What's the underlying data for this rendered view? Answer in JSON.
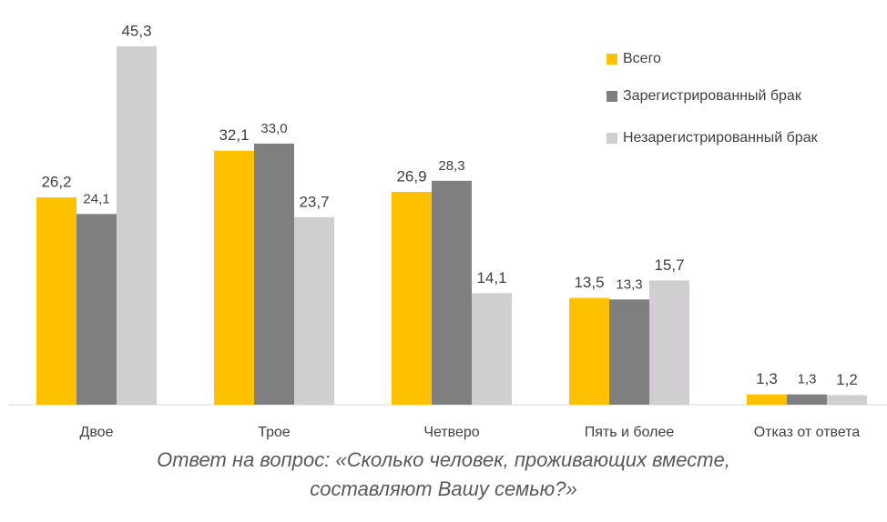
{
  "chart_data": {
    "type": "bar",
    "title": [
      "Ответ на вопрос: «Сколько человек, проживающих вместе,",
      "составляют Вашу семью?»"
    ],
    "categories": [
      "Двое",
      "Трое",
      "Четверо",
      "Пять и более",
      "Отказ от ответа"
    ],
    "series": [
      {
        "name": "Всего",
        "color": "#ffc000",
        "values": [
          26.2,
          32.1,
          26.9,
          13.5,
          1.3
        ],
        "value_labels": [
          "26,2",
          "32,1",
          "26,9",
          "13,5",
          "1,3"
        ]
      },
      {
        "name": "Зарегистрированный брак",
        "color": "#7f7f7f",
        "values": [
          24.1,
          33.0,
          28.3,
          13.3,
          1.3
        ],
        "value_labels": [
          "24,1",
          "33,0",
          "28,3",
          "13,3",
          "1,3"
        ]
      },
      {
        "name": "Незарегистрированный брак",
        "color": "#d0ced0",
        "values": [
          45.3,
          23.7,
          14.1,
          15.7,
          1.2
        ],
        "value_labels": [
          "45,3",
          "23,7",
          "14,1",
          "15,7",
          "1,2"
        ]
      }
    ],
    "ylim": [
      0,
      50
    ],
    "legend": "upper right"
  }
}
